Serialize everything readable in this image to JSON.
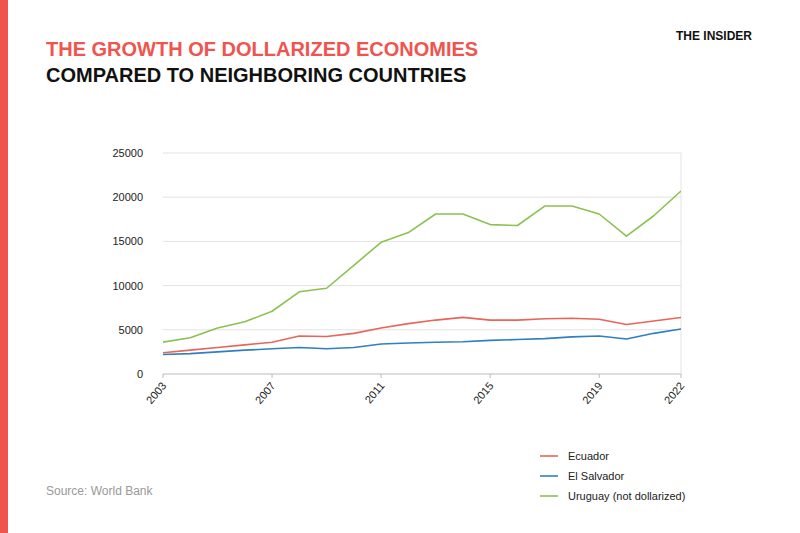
{
  "chart_data": {
    "type": "line",
    "title": "THE GROWTH OF DOLLARIZED ECONOMIES",
    "subtitle": "COMPARED TO NEIGHBORING COUNTRIES",
    "logo": "THE INSIDER",
    "source": "Source: World Bank",
    "x": [
      2003,
      2004,
      2005,
      2006,
      2007,
      2008,
      2009,
      2010,
      2011,
      2012,
      2013,
      2014,
      2015,
      2016,
      2017,
      2018,
      2019,
      2020,
      2021,
      2022
    ],
    "xlim": [
      2003,
      2022
    ],
    "xticks": [
      2003,
      2007,
      2011,
      2015,
      2019,
      2022
    ],
    "ylim": [
      0,
      25000
    ],
    "yticks": [
      0,
      5000,
      10000,
      15000,
      20000,
      25000
    ],
    "grid": true,
    "legend": "bottom-right",
    "series": [
      {
        "name": "Ecuador",
        "color": "#e8655a",
        "values": [
          2400,
          2700,
          3000,
          3300,
          3600,
          4300,
          4250,
          4600,
          5200,
          5700,
          6100,
          6400,
          6100,
          6100,
          6250,
          6300,
          6200,
          5600,
          6000,
          6400
        ]
      },
      {
        "name": "El Salvador",
        "color": "#2f7fc1",
        "values": [
          2200,
          2300,
          2500,
          2700,
          2850,
          3000,
          2850,
          3000,
          3400,
          3500,
          3600,
          3650,
          3800,
          3900,
          4000,
          4200,
          4300,
          3950,
          4600,
          5100
        ]
      },
      {
        "name": "Uruguay (not dollarized)",
        "color": "#8cc152",
        "values": [
          3600,
          4100,
          5200,
          5900,
          7100,
          9300,
          9700,
          12300,
          14900,
          16000,
          18100,
          18100,
          16900,
          16800,
          19000,
          19000,
          18100,
          15600,
          17900,
          20700
        ]
      }
    ]
  }
}
